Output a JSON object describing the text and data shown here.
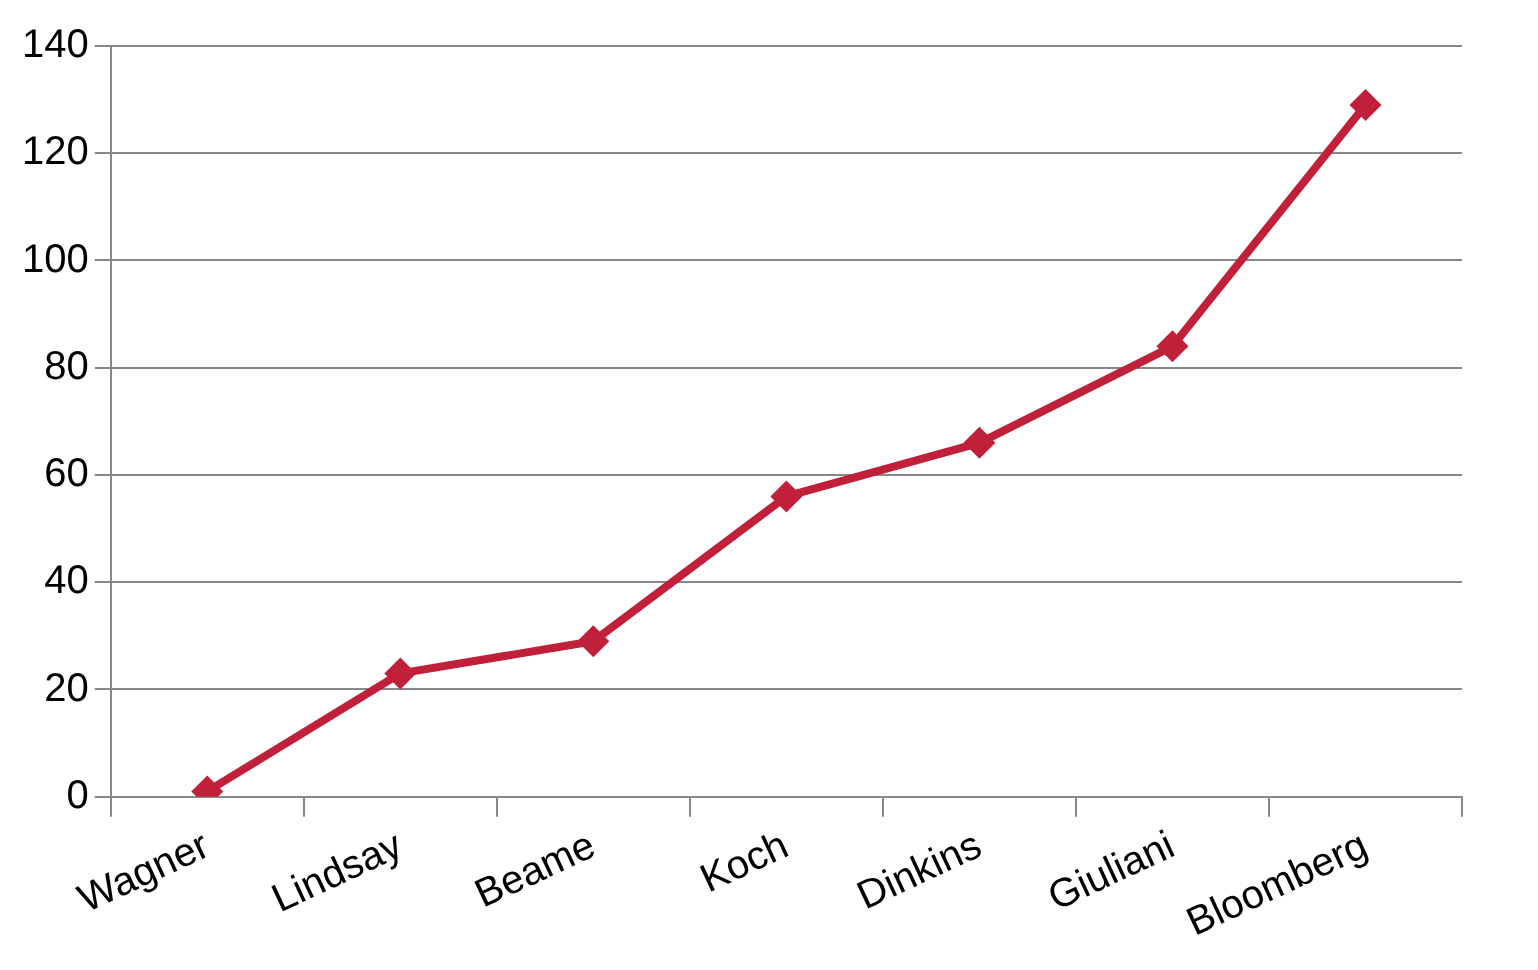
{
  "chart_data": {
    "type": "line",
    "categories": [
      "Wagner",
      "Lindsay",
      "Beame",
      "Koch",
      "Dinkins",
      "Giuliani",
      "Bloomberg"
    ],
    "series": [
      {
        "color": "#c0203a",
        "values": [
          1,
          23,
          29,
          56,
          66,
          84,
          129
        ]
      }
    ],
    "ylim": [
      0,
      140
    ],
    "yticks": [
      0,
      20,
      40,
      60,
      80,
      100,
      120,
      140
    ],
    "grid": "y",
    "legend": false,
    "marker": "diamond",
    "line_style": "solid"
  }
}
